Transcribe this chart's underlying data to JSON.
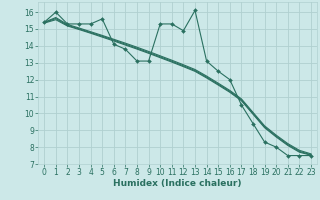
{
  "xlabel": "Humidex (Indice chaleur)",
  "bg_color": "#cce8e8",
  "grid_color": "#b0d0d0",
  "line_color": "#2a7060",
  "xlim": [
    -0.5,
    23.5
  ],
  "ylim": [
    7,
    16.6
  ],
  "yticks": [
    7,
    8,
    9,
    10,
    11,
    12,
    13,
    14,
    15,
    16
  ],
  "xticks": [
    0,
    1,
    2,
    3,
    4,
    5,
    6,
    7,
    8,
    9,
    10,
    11,
    12,
    13,
    14,
    15,
    16,
    17,
    18,
    19,
    20,
    21,
    22,
    23
  ],
  "series1_x": [
    0,
    1,
    2,
    3,
    4,
    5,
    6,
    7,
    8,
    9,
    10,
    11,
    12,
    13,
    14,
    15,
    16,
    17,
    18,
    19,
    20,
    21,
    22,
    23
  ],
  "series1_y": [
    15.4,
    16.0,
    15.3,
    15.3,
    15.3,
    15.6,
    14.1,
    13.8,
    13.1,
    13.1,
    15.3,
    15.3,
    14.9,
    16.1,
    13.1,
    12.5,
    12.0,
    10.5,
    9.4,
    8.3,
    8.0,
    7.5,
    7.5,
    7.5
  ],
  "series2_x": [
    0,
    1,
    2,
    3,
    4,
    5,
    6,
    7,
    8,
    9,
    10,
    11,
    12,
    13,
    14,
    15,
    16,
    17,
    18,
    19,
    20,
    21,
    22,
    23
  ],
  "series2_y": [
    15.35,
    15.55,
    15.18,
    14.97,
    14.75,
    14.52,
    14.29,
    14.05,
    13.81,
    13.56,
    13.3,
    13.04,
    12.77,
    12.49,
    12.1,
    11.68,
    11.25,
    10.75,
    9.95,
    9.15,
    8.6,
    8.1,
    7.7,
    7.52
  ],
  "series3_x": [
    0,
    1,
    2,
    3,
    4,
    5,
    6,
    7,
    8,
    9,
    10,
    11,
    12,
    13,
    14,
    15,
    16,
    17,
    18,
    19,
    20,
    21,
    22,
    23
  ],
  "series3_y": [
    15.38,
    15.62,
    15.22,
    15.01,
    14.79,
    14.57,
    14.34,
    14.1,
    13.86,
    13.61,
    13.35,
    13.09,
    12.82,
    12.54,
    12.15,
    11.73,
    11.3,
    10.8,
    10.0,
    9.2,
    8.65,
    8.15,
    7.75,
    7.55
  ],
  "series4_x": [
    0,
    1,
    2,
    3,
    4,
    5,
    6,
    7,
    8,
    9,
    10,
    11,
    12,
    13,
    14,
    15,
    16,
    17,
    18,
    19,
    20,
    21,
    22,
    23
  ],
  "series4_y": [
    15.4,
    15.68,
    15.27,
    15.06,
    14.84,
    14.62,
    14.39,
    14.16,
    13.92,
    13.67,
    13.41,
    13.15,
    12.88,
    12.6,
    12.21,
    11.79,
    11.36,
    10.86,
    10.06,
    9.26,
    8.71,
    8.21,
    7.81,
    7.6
  ]
}
